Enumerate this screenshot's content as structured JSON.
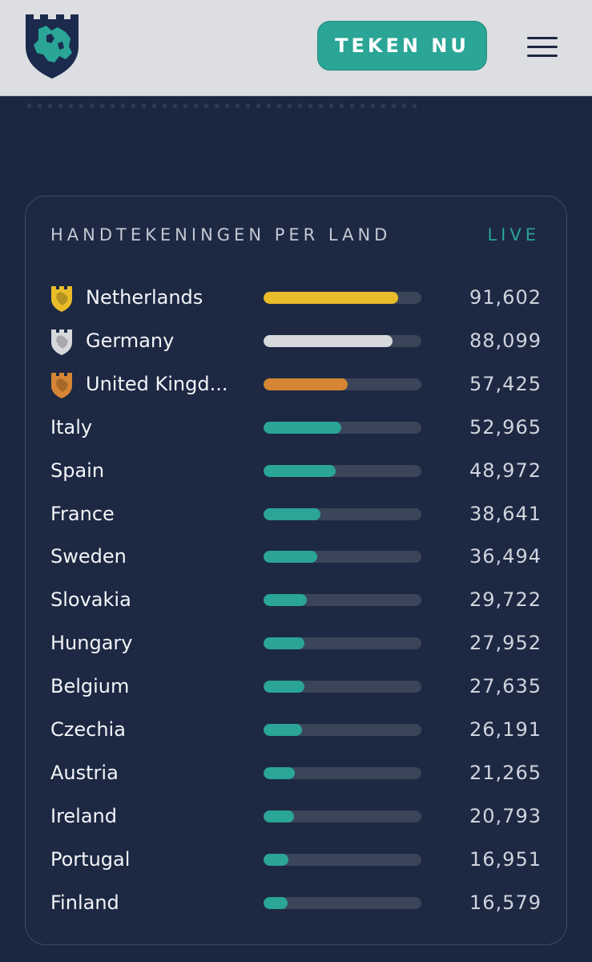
{
  "header": {
    "cta_label": "TEKEN NU",
    "logo_icon": "eu-shield-logo",
    "menu_icon": "hamburger-menu-icon"
  },
  "card": {
    "title": "HANDTEKENINGEN PER LAND",
    "live_label": "LIVE"
  },
  "countries": [
    {
      "name": "Netherlands",
      "count": "91,602",
      "value": 91602,
      "flag": "gold-shield-icon",
      "color": "#e9bc2a"
    },
    {
      "name": "Germany",
      "count": "88,099",
      "value": 88099,
      "flag": "silver-shield-icon",
      "color": "#d6d8dc"
    },
    {
      "name": "United Kingd...",
      "count": "57,425",
      "value": 57425,
      "flag": "bronze-shield-icon",
      "color": "#d58534"
    },
    {
      "name": "Italy",
      "count": "52,965",
      "value": 52965,
      "color": "#2aa596"
    },
    {
      "name": "Spain",
      "count": "48,972",
      "value": 48972,
      "color": "#2aa596"
    },
    {
      "name": "France",
      "count": "38,641",
      "value": 38641,
      "color": "#2aa596"
    },
    {
      "name": "Sweden",
      "count": "36,494",
      "value": 36494,
      "color": "#2aa596"
    },
    {
      "name": "Slovakia",
      "count": "29,722",
      "value": 29722,
      "color": "#2aa596"
    },
    {
      "name": "Hungary",
      "count": "27,952",
      "value": 27952,
      "color": "#2aa596"
    },
    {
      "name": "Belgium",
      "count": "27,635",
      "value": 27635,
      "color": "#2aa596"
    },
    {
      "name": "Czechia",
      "count": "26,191",
      "value": 26191,
      "color": "#2aa596"
    },
    {
      "name": "Austria",
      "count": "21,265",
      "value": 21265,
      "color": "#2aa596"
    },
    {
      "name": "Ireland",
      "count": "20,793",
      "value": 20793,
      "color": "#2aa596"
    },
    {
      "name": "Portugal",
      "count": "16,951",
      "value": 16951,
      "color": "#2aa596"
    },
    {
      "name": "Finland",
      "count": "16,579",
      "value": 16579,
      "color": "#2aa596"
    }
  ],
  "bar_max": 107500
}
